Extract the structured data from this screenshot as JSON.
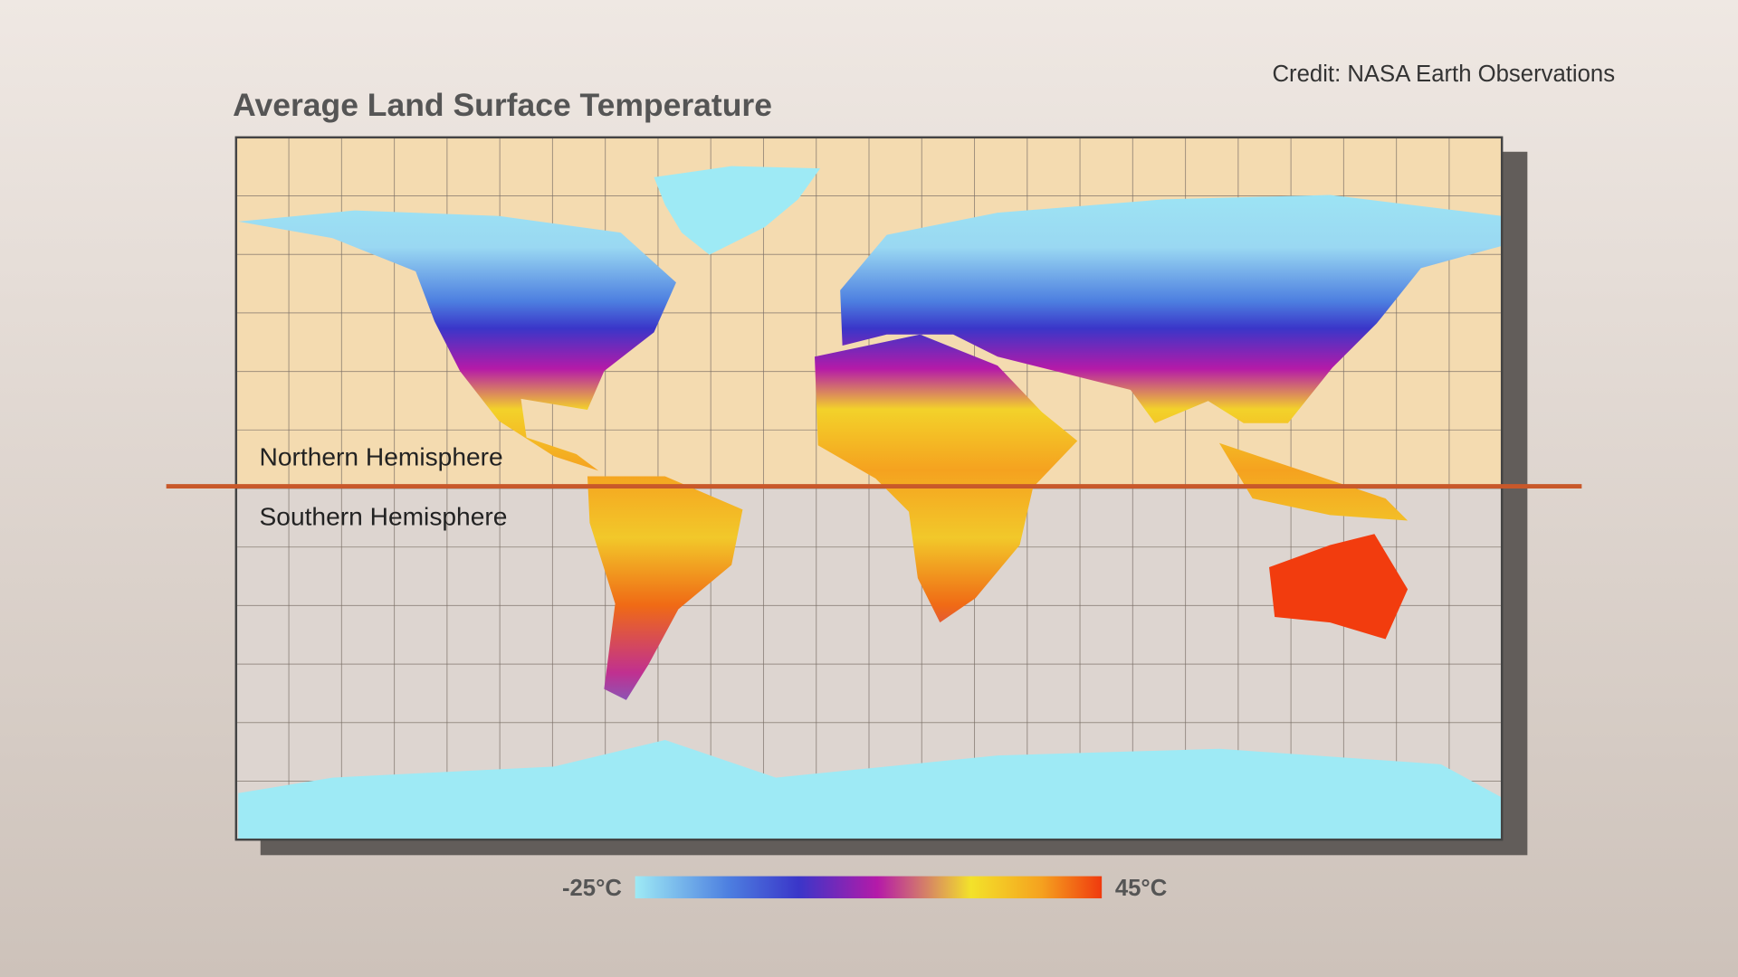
{
  "header": {
    "title": "Average Land Surface Temperature",
    "credit": "Credit: NASA Earth Observations"
  },
  "map": {
    "northern_label": "Northern Hemisphere",
    "southern_label": "Southern Hemisphere"
  },
  "legend": {
    "min_label": "-25°C",
    "max_label": "45°C"
  }
}
